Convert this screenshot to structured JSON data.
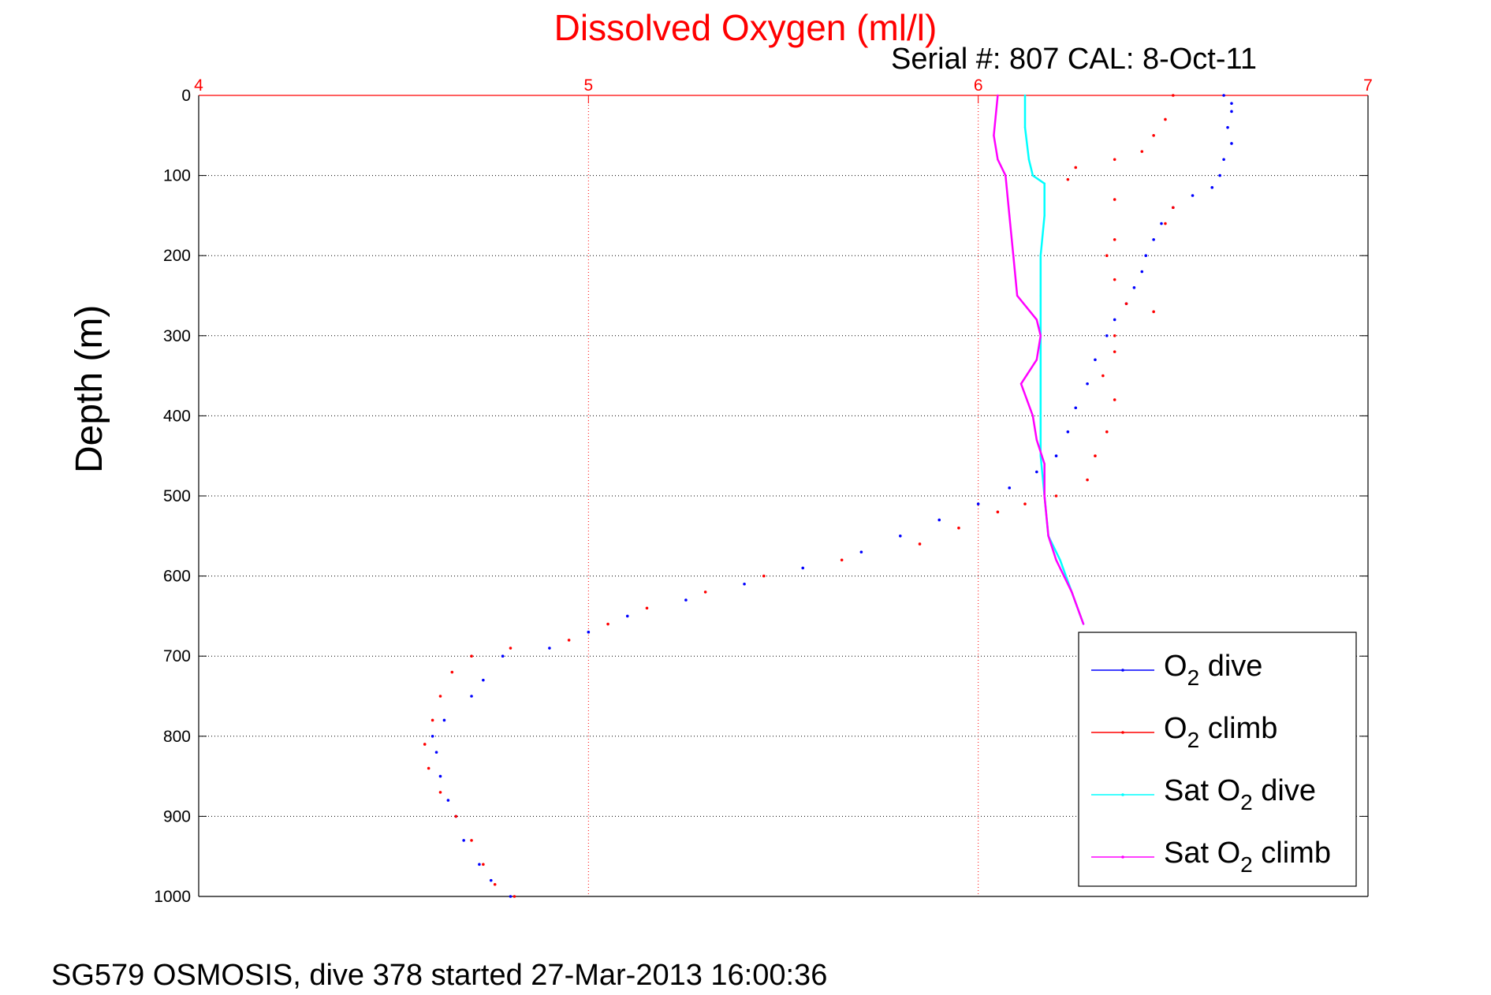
{
  "chart_data": {
    "type": "scatter",
    "title": "Dissolved Oxygen (ml/l)",
    "subtitle": "Serial #: 807  CAL: 8-Oct-11",
    "ylabel": "Depth (m)",
    "footer": "SG579 OSMOSIS, dive 378 started 27-Mar-2013 16:00:36",
    "xlim": [
      4,
      7
    ],
    "ylim": [
      0,
      1000
    ],
    "y_reversed": true,
    "x_axis_position": "top",
    "xticks": [
      4,
      5,
      6,
      7
    ],
    "yticks": [
      0,
      100,
      200,
      300,
      400,
      500,
      600,
      700,
      800,
      900,
      1000
    ],
    "grid": true,
    "legend_position": "bottom-right",
    "series": [
      {
        "name": "O2 dive",
        "legend_label": {
          "prefix": "O",
          "sub": "2",
          "suffix": " dive"
        },
        "color": "#0000ff",
        "style": "dots",
        "points": [
          [
            6.63,
            0
          ],
          [
            6.65,
            10
          ],
          [
            6.65,
            20
          ],
          [
            6.64,
            40
          ],
          [
            6.65,
            60
          ],
          [
            6.63,
            80
          ],
          [
            6.62,
            100
          ],
          [
            6.6,
            115
          ],
          [
            6.55,
            125
          ],
          [
            6.5,
            140
          ],
          [
            6.47,
            160
          ],
          [
            6.45,
            180
          ],
          [
            6.43,
            200
          ],
          [
            6.42,
            220
          ],
          [
            6.4,
            240
          ],
          [
            6.38,
            260
          ],
          [
            6.35,
            280
          ],
          [
            6.33,
            300
          ],
          [
            6.3,
            330
          ],
          [
            6.28,
            360
          ],
          [
            6.25,
            390
          ],
          [
            6.23,
            420
          ],
          [
            6.2,
            450
          ],
          [
            6.15,
            470
          ],
          [
            6.08,
            490
          ],
          [
            6.0,
            510
          ],
          [
            5.9,
            530
          ],
          [
            5.8,
            550
          ],
          [
            5.7,
            570
          ],
          [
            5.55,
            590
          ],
          [
            5.4,
            610
          ],
          [
            5.25,
            630
          ],
          [
            5.1,
            650
          ],
          [
            5.0,
            670
          ],
          [
            4.9,
            690
          ],
          [
            4.78,
            700
          ],
          [
            4.73,
            730
          ],
          [
            4.7,
            750
          ],
          [
            4.63,
            780
          ],
          [
            4.6,
            800
          ],
          [
            4.61,
            820
          ],
          [
            4.62,
            850
          ],
          [
            4.64,
            880
          ],
          [
            4.66,
            900
          ],
          [
            4.68,
            930
          ],
          [
            4.72,
            960
          ],
          [
            4.75,
            980
          ],
          [
            4.8,
            1000
          ]
        ]
      },
      {
        "name": "O2 climb",
        "legend_label": {
          "prefix": "O",
          "sub": "2",
          "suffix": " climb"
        },
        "color": "#ff0000",
        "style": "dots",
        "points": [
          [
            6.5,
            0
          ],
          [
            6.48,
            30
          ],
          [
            6.45,
            50
          ],
          [
            6.42,
            70
          ],
          [
            6.35,
            80
          ],
          [
            6.25,
            90
          ],
          [
            6.23,
            105
          ],
          [
            6.35,
            130
          ],
          [
            6.5,
            140
          ],
          [
            6.48,
            160
          ],
          [
            6.35,
            180
          ],
          [
            6.33,
            200
          ],
          [
            6.35,
            230
          ],
          [
            6.38,
            260
          ],
          [
            6.45,
            270
          ],
          [
            6.35,
            300
          ],
          [
            6.35,
            320
          ],
          [
            6.32,
            350
          ],
          [
            6.35,
            380
          ],
          [
            6.33,
            420
          ],
          [
            6.3,
            450
          ],
          [
            6.28,
            480
          ],
          [
            6.2,
            500
          ],
          [
            6.12,
            510
          ],
          [
            6.05,
            520
          ],
          [
            5.95,
            540
          ],
          [
            5.85,
            560
          ],
          [
            5.65,
            580
          ],
          [
            5.45,
            600
          ],
          [
            5.3,
            620
          ],
          [
            5.15,
            640
          ],
          [
            5.05,
            660
          ],
          [
            4.95,
            680
          ],
          [
            4.8,
            690
          ],
          [
            4.7,
            700
          ],
          [
            4.65,
            720
          ],
          [
            4.62,
            750
          ],
          [
            4.6,
            780
          ],
          [
            4.58,
            810
          ],
          [
            4.59,
            840
          ],
          [
            4.62,
            870
          ],
          [
            4.66,
            900
          ],
          [
            4.7,
            930
          ],
          [
            4.73,
            960
          ],
          [
            4.76,
            985
          ],
          [
            4.81,
            1000
          ]
        ]
      },
      {
        "name": "Sat O2 dive",
        "legend_label": {
          "prefix": "Sat O",
          "sub": "2",
          "suffix": " dive"
        },
        "color": "#00ffff",
        "style": "line",
        "points": [
          [
            6.12,
            0
          ],
          [
            6.12,
            40
          ],
          [
            6.13,
            80
          ],
          [
            6.14,
            100
          ],
          [
            6.17,
            110
          ],
          [
            6.17,
            150
          ],
          [
            6.16,
            200
          ],
          [
            6.16,
            250
          ],
          [
            6.16,
            300
          ],
          [
            6.16,
            350
          ],
          [
            6.16,
            400
          ],
          [
            6.16,
            450
          ],
          [
            6.17,
            500
          ],
          [
            6.18,
            550
          ],
          [
            6.21,
            580
          ],
          [
            6.24,
            620
          ],
          [
            6.27,
            660
          ]
        ]
      },
      {
        "name": "Sat O2 climb",
        "legend_label": {
          "prefix": "Sat O",
          "sub": "2",
          "suffix": " climb"
        },
        "color": "#ff00ff",
        "style": "line",
        "points": [
          [
            6.05,
            0
          ],
          [
            6.04,
            50
          ],
          [
            6.05,
            80
          ],
          [
            6.07,
            100
          ],
          [
            6.08,
            150
          ],
          [
            6.09,
            200
          ],
          [
            6.1,
            250
          ],
          [
            6.15,
            280
          ],
          [
            6.16,
            300
          ],
          [
            6.15,
            330
          ],
          [
            6.11,
            360
          ],
          [
            6.14,
            400
          ],
          [
            6.15,
            430
          ],
          [
            6.17,
            460
          ],
          [
            6.17,
            500
          ],
          [
            6.18,
            550
          ],
          [
            6.2,
            580
          ],
          [
            6.24,
            620
          ],
          [
            6.27,
            660
          ]
        ]
      }
    ]
  }
}
